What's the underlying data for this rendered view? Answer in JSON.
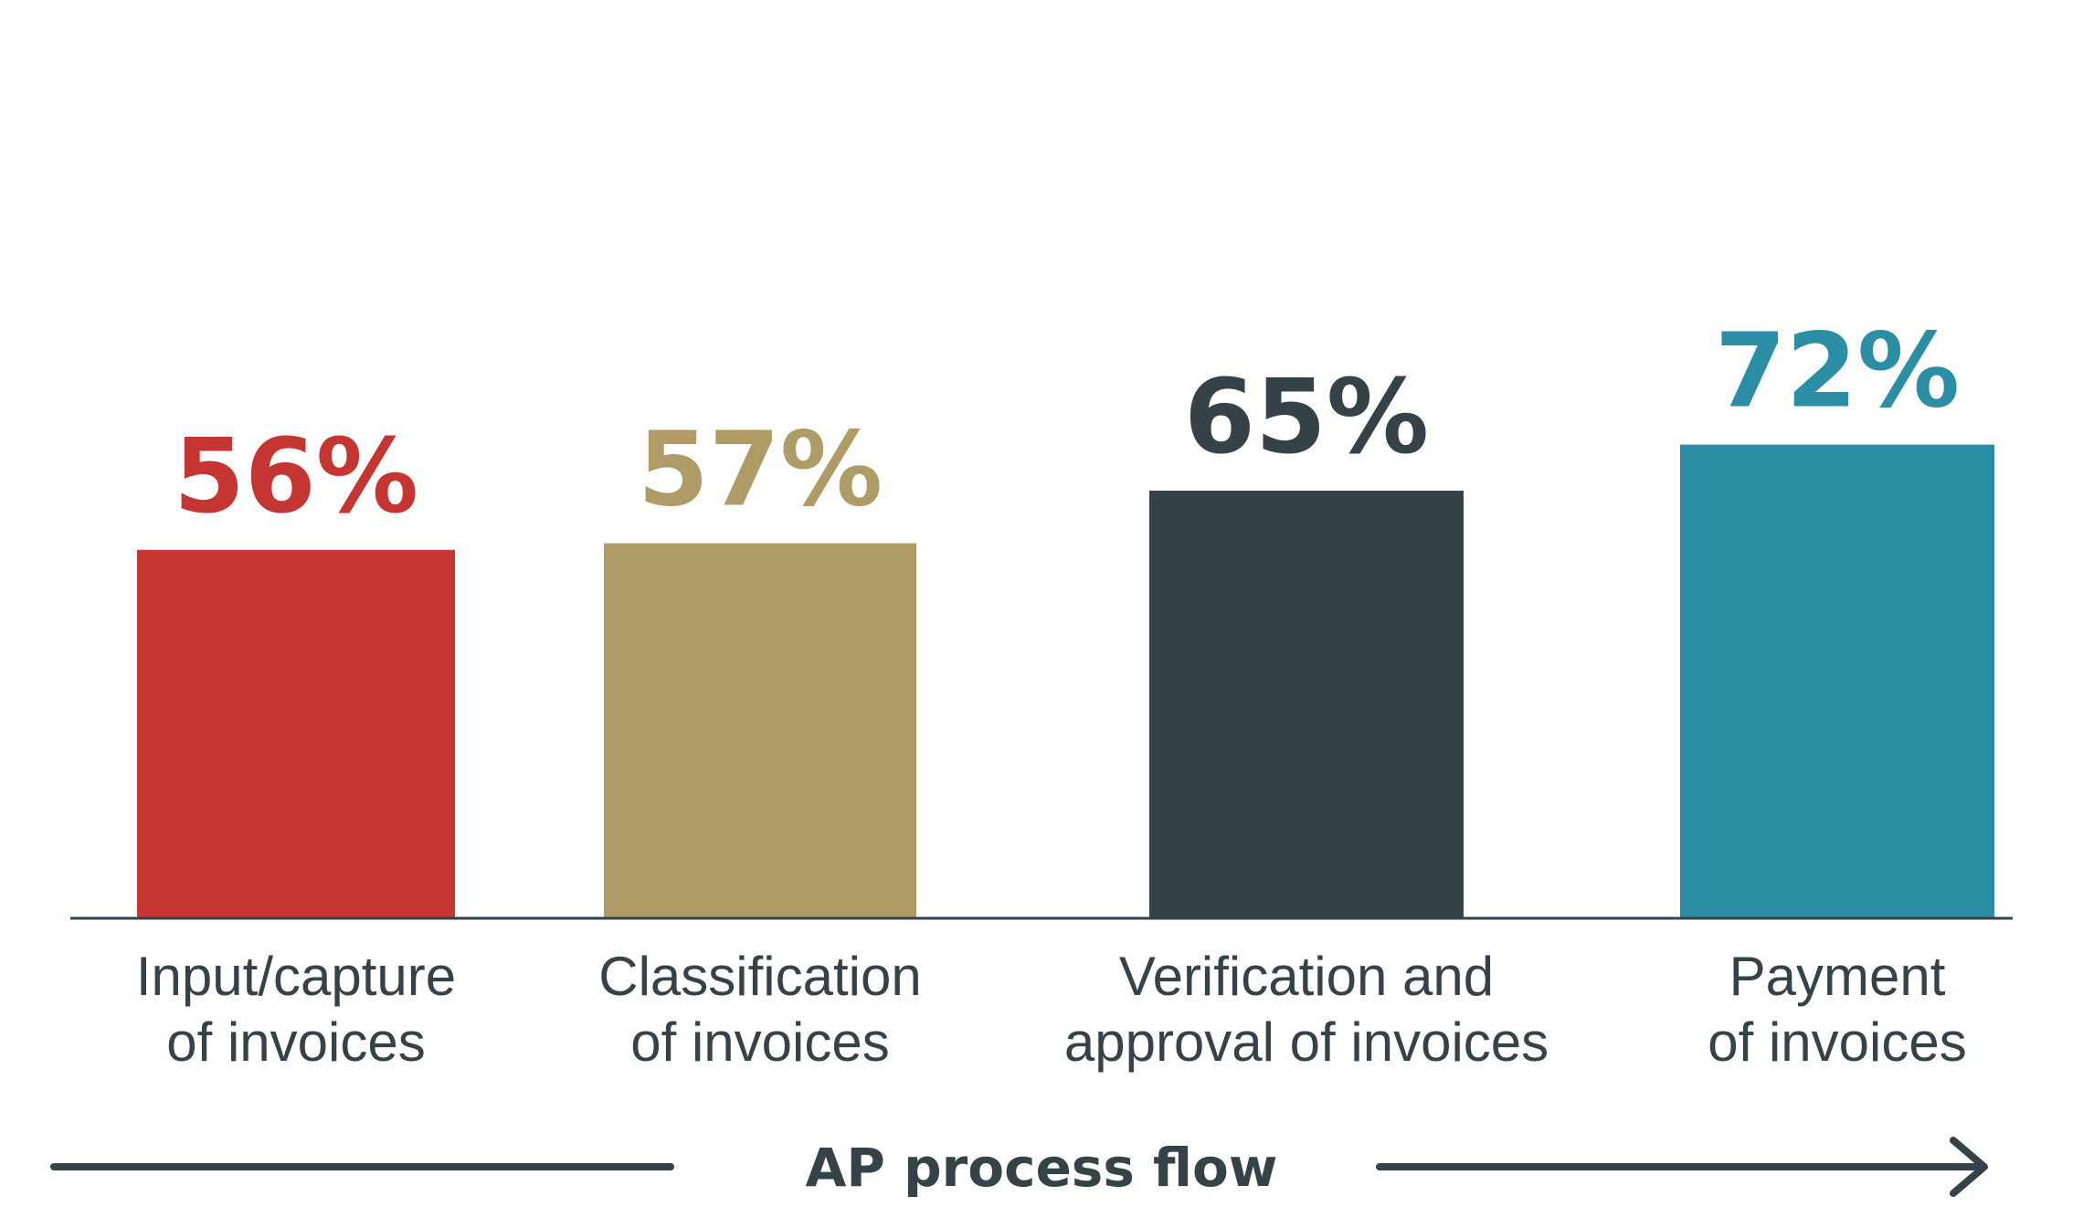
{
  "chart_data": {
    "type": "bar",
    "categories": [
      [
        "Input/capture",
        "of invoices"
      ],
      [
        "Classification",
        "of invoices"
      ],
      [
        "Verification and",
        "approval of invoices"
      ],
      [
        "Payment",
        "of invoices"
      ]
    ],
    "values": [
      56,
      57,
      65,
      72
    ],
    "value_labels": [
      "56%",
      "57%",
      "65%",
      "72%"
    ],
    "colors": [
      "#c53632",
      "#ae9b66",
      "#354247",
      "#2b8ea5"
    ],
    "ylim": [
      0,
      100
    ],
    "grid": false,
    "axis_label": "AP process flow",
    "text_color": "#354247"
  }
}
